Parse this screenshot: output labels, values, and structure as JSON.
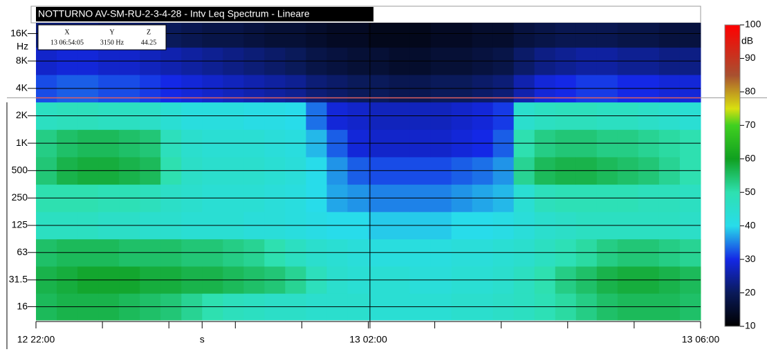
{
  "chart_data": {
    "type": "heatmap",
    "title": "NOTTURNO AV-SM-RU-2-3-4-28 - Intv Leq Spectrum - Lineare",
    "y_unit": "Hz",
    "colorbar_label": "dB",
    "x": [
      22,
      22.25,
      22.5,
      22.75,
      23,
      23.25,
      23.5,
      23.75,
      24,
      24.25,
      24.5,
      24.75,
      25,
      25.25,
      25.5,
      25.75,
      26,
      26.25,
      26.5,
      26.75,
      27,
      27.25,
      27.5,
      27.75,
      28,
      28.25,
      28.5,
      28.75,
      29,
      29.25,
      29.5,
      29.75
    ],
    "y": [
      16,
      31.5,
      63,
      125,
      250,
      500,
      1000,
      2000,
      4000,
      8000,
      16000
    ],
    "z": [
      [
        56,
        57,
        57,
        57,
        56,
        55,
        54,
        52,
        50,
        48,
        47,
        46,
        46,
        45,
        45,
        45,
        44,
        44,
        44,
        44,
        45,
        45,
        46,
        47,
        49,
        51,
        53,
        55,
        56,
        56,
        56,
        55
      ],
      [
        57,
        58,
        59,
        59,
        59,
        58,
        58,
        57,
        57,
        56,
        55,
        54,
        52,
        48,
        45,
        44,
        44,
        44,
        43,
        43,
        44,
        44,
        45,
        47,
        50,
        53,
        55,
        57,
        58,
        58,
        57,
        56
      ],
      [
        55,
        56,
        56,
        56,
        55,
        55,
        55,
        54,
        54,
        53,
        52,
        50,
        47,
        45,
        44,
        43,
        42,
        42,
        42,
        42,
        43,
        43,
        44,
        45,
        47,
        49,
        51,
        53,
        54,
        54,
        53,
        52
      ],
      [
        47,
        47,
        47,
        46,
        46,
        45,
        45,
        44,
        44,
        44,
        43,
        43,
        42,
        41,
        40,
        40,
        39,
        39,
        39,
        39,
        40,
        40,
        41,
        43,
        45,
        46,
        47,
        47,
        47,
        47,
        47,
        46
      ],
      [
        50,
        50,
        50,
        49,
        49,
        48,
        46,
        45,
        44,
        44,
        44,
        43,
        42,
        40,
        37,
        36,
        35,
        35,
        35,
        35,
        36,
        37,
        38,
        44,
        48,
        49,
        49,
        49,
        49,
        48,
        48,
        47
      ],
      [
        54,
        57,
        58,
        58,
        57,
        56,
        50,
        46,
        45,
        45,
        45,
        44,
        43,
        40,
        36,
        33,
        32,
        32,
        32,
        32,
        33,
        34,
        36,
        52,
        56,
        57,
        57,
        56,
        55,
        54,
        52,
        50
      ],
      [
        53,
        55,
        56,
        56,
        55,
        54,
        48,
        45,
        44,
        44,
        44,
        43,
        42,
        38,
        33,
        29,
        28,
        28,
        28,
        28,
        29,
        30,
        33,
        50,
        53,
        54,
        54,
        53,
        53,
        52,
        51,
        50
      ],
      [
        47,
        48,
        48,
        47,
        47,
        46,
        44,
        42,
        42,
        42,
        41,
        41,
        40,
        34,
        29,
        28,
        27,
        27,
        27,
        27,
        28,
        29,
        31,
        45,
        47,
        48,
        48,
        47,
        47,
        46,
        45,
        44
      ],
      [
        32,
        33,
        33,
        32,
        32,
        31,
        30,
        29,
        28,
        27,
        26,
        25,
        24,
        22,
        21,
        20,
        20,
        19,
        19,
        20,
        20,
        21,
        22,
        26,
        29,
        30,
        31,
        31,
        30,
        30,
        29,
        29
      ],
      [
        28,
        29,
        29,
        28,
        28,
        27,
        26,
        25,
        24,
        23,
        22,
        21,
        20,
        18,
        17,
        16,
        16,
        15,
        15,
        16,
        16,
        17,
        18,
        21,
        23,
        24,
        25,
        25,
        24,
        24,
        23,
        23
      ],
      [
        22,
        22,
        22,
        21,
        21,
        20,
        20,
        19,
        18,
        18,
        17,
        16,
        16,
        15,
        14,
        14,
        13,
        13,
        13,
        14,
        14,
        15,
        15,
        17,
        18,
        19,
        19,
        19,
        18,
        18,
        17,
        17
      ]
    ],
    "xlim": [
      22,
      30
    ],
    "xticks": [
      {
        "value": 22,
        "label": "12 22:00"
      },
      {
        "value": 24,
        "label": "s"
      },
      {
        "value": 26,
        "label": "13 02:00"
      },
      {
        "value": 30,
        "label": "13 06:00"
      }
    ],
    "xminor_ticks": [
      22.8,
      23.6,
      24.4,
      25.2,
      26.8,
      27.6,
      28.4,
      29.2
    ],
    "ylim": [
      11,
      21000
    ],
    "y_log": true,
    "yticks": [
      16,
      31.5,
      63,
      125,
      250,
      500,
      {
        "value": 1000,
        "label": "1K"
      },
      {
        "value": 2000,
        "label": "2K"
      },
      {
        "value": 4000,
        "label": "4K"
      },
      {
        "value": 8000,
        "label": "8K"
      },
      {
        "value": 16000,
        "label": "16K"
      }
    ],
    "grid": true,
    "zlim": [
      10,
      100
    ],
    "zticks": [
      10,
      20,
      30,
      40,
      50,
      60,
      70,
      80,
      90,
      100
    ],
    "colorscale": [
      [
        10,
        "#000000"
      ],
      [
        20,
        "#0a1a5a"
      ],
      [
        30,
        "#1428e6"
      ],
      [
        40,
        "#28dcea"
      ],
      [
        50,
        "#2ee0b0"
      ],
      [
        60,
        "#10a020"
      ],
      [
        70,
        "#40d020"
      ],
      [
        75,
        "#d8e010"
      ],
      [
        85,
        "#a85030"
      ],
      [
        100,
        "#ff0000"
      ]
    ],
    "cursor": {
      "x": 26.02,
      "y": 3150
    },
    "readout": {
      "headers": [
        "X",
        "Y",
        "Z"
      ],
      "values": [
        "13 06:54:05",
        "3150 Hz",
        "44.25"
      ]
    }
  }
}
